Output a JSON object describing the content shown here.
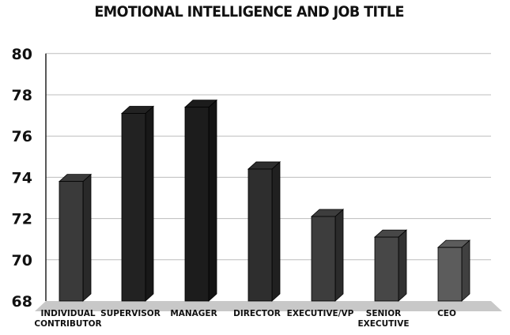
{
  "chart_data": {
    "type": "bar",
    "title": "EMOTIONAL INTELLIGENCE AND JOB TITLE",
    "categories": [
      [
        "INDIVIDUAL",
        "CONTRIBUTOR"
      ],
      [
        "SUPERVISOR"
      ],
      [
        "MANAGER"
      ],
      [
        "DIRECTOR"
      ],
      [
        "EXECUTIVE/VP"
      ],
      [
        "SENIOR",
        "EXECUTIVE"
      ],
      [
        "CEO"
      ]
    ],
    "values": [
      73.8,
      77.1,
      77.4,
      74.4,
      72.1,
      71.1,
      70.6
    ],
    "ylim": [
      68,
      80
    ],
    "yticks": [
      68,
      70,
      72,
      74,
      76,
      78,
      80
    ],
    "grid": true,
    "style": "3d",
    "colors": {
      "bars": [
        "#3a3a3a",
        "#222222",
        "#1c1c1c",
        "#2e2e2e",
        "#3d3d3d",
        "#474747",
        "#5c5c5c"
      ],
      "floor": "#c8c8c8",
      "grid": "#bdbdbd",
      "axis": "#222222"
    }
  }
}
